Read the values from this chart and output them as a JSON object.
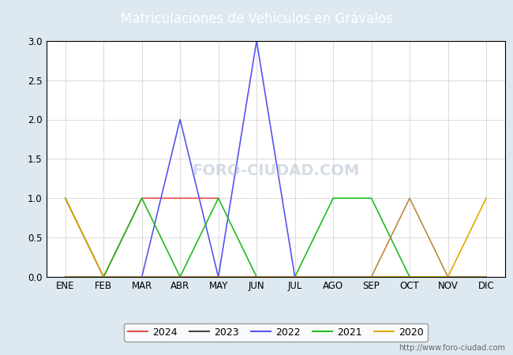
{
  "title": "Matriculaciones de Vehiculos en Grávalos",
  "months": [
    "ENE",
    "FEB",
    "MAR",
    "ABR",
    "MAY",
    "JUN",
    "JUL",
    "AGO",
    "SEP",
    "OCT",
    "NOV",
    "DIC"
  ],
  "series": [
    {
      "year": "2024",
      "color": "#e05050",
      "data": [
        0,
        0,
        1,
        1,
        1,
        null,
        null,
        null,
        null,
        null,
        null,
        null
      ]
    },
    {
      "year": "2023",
      "color": "#444444",
      "data": [
        1,
        0,
        0,
        0,
        0,
        0,
        0,
        0,
        0,
        0,
        0,
        0
      ]
    },
    {
      "year": "2022",
      "color": "#5555ee",
      "data": [
        0,
        0,
        0,
        2,
        0,
        3,
        0,
        0,
        0,
        0,
        0,
        0
      ]
    },
    {
      "year": "2021",
      "color": "#22bb22",
      "data": [
        0,
        0,
        1,
        0,
        1,
        0,
        0,
        1,
        1,
        0,
        0,
        0
      ]
    },
    {
      "year": "2020",
      "color": "#ddaa00",
      "data": [
        1,
        0,
        0,
        0,
        0,
        0,
        0,
        0,
        0,
        0,
        0,
        1
      ]
    }
  ],
  "extra_series": [
    {
      "color": "#bb8844",
      "data": [
        0,
        0,
        0,
        0,
        0,
        0,
        0,
        0,
        0,
        1,
        0,
        0
      ]
    }
  ],
  "ylim": [
    0.0,
    3.0
  ],
  "yticks": [
    0.0,
    0.5,
    1.0,
    1.5,
    2.0,
    2.5,
    3.0
  ],
  "title_bg_color": "#5b9bd5",
  "title_text_color": "#ffffff",
  "title_fontsize": 12,
  "plot_bg_color": "#ffffff",
  "fig_bg_color": "#dde8f0",
  "grid_color": "#dddddd",
  "border_color": "#000000",
  "watermark_text": "http://www.foro-ciudad.com",
  "center_watermark": "FORO-CIUDAD.COM",
  "center_watermark_color": "#aabbcc"
}
